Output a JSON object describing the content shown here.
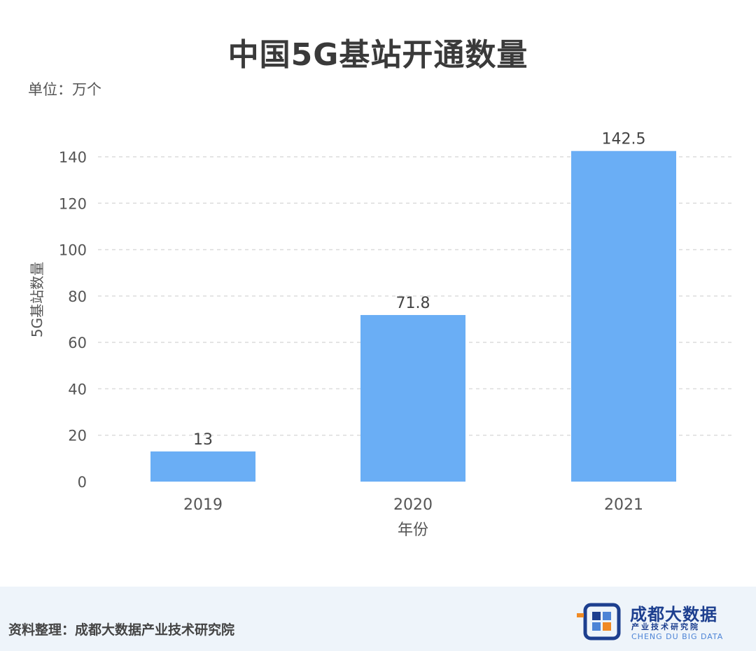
{
  "chart_data": {
    "type": "bar",
    "title": "中国5G基站开通数量",
    "unit_note": "单位：万个",
    "xlabel": "年份",
    "ylabel": "5G基站数量",
    "categories": [
      "2019",
      "2020",
      "2021"
    ],
    "values": [
      13,
      71.8,
      142.5
    ],
    "data_labels": [
      "13",
      "71.8",
      "142.5"
    ],
    "ylim": [
      0,
      150
    ],
    "yticks": [
      0,
      20,
      40,
      60,
      80,
      100,
      120,
      140
    ],
    "grid": true,
    "bar_color": "#6aaef5"
  },
  "footer": {
    "source": "资料整理：成都大数据产业技术研究院",
    "logo_name": "成都大数据",
    "logo_sub": "产业技术研究院",
    "logo_en": "CHENG DU BIG DATA"
  }
}
